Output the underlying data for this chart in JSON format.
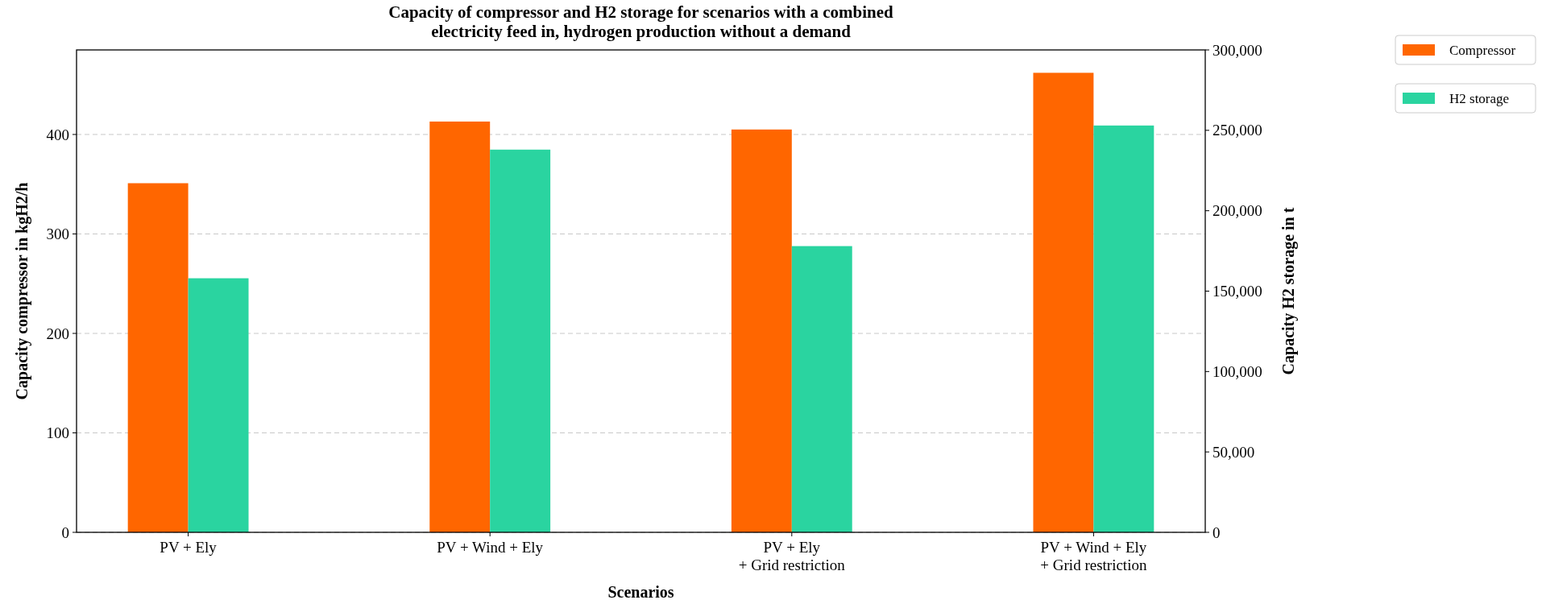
{
  "chart_data": {
    "type": "bar",
    "title": "Capacity of compressor and H2 storage for scenarios with a combined\nelectricity feed in, hydrogen production without a demand",
    "xlabel": "Scenarios",
    "ylabel": "Capacity compressor in kgH2/h",
    "y2label": "Capacity H2 storage in t",
    "categories": [
      "PV + Ely",
      "PV + Wind + Ely",
      "PV + Ely\n+ Grid restriction",
      "PV + Wind + Ely\n+ Grid restriction"
    ],
    "series": [
      {
        "name": "Compressor",
        "color": "#ff6600",
        "values": [
          351,
          413,
          405,
          462
        ]
      },
      {
        "name": "H2 storage",
        "color": "#2ad4a0",
        "axis": "y2",
        "values": [
          158000,
          238000,
          178000,
          253000
        ]
      }
    ],
    "ylim": [
      0,
      485
    ],
    "yticks": [
      0,
      100,
      200,
      300,
      400
    ],
    "y2lim": [
      0,
      300000
    ],
    "y2ticks": [
      {
        "value": 0,
        "label": "0"
      },
      {
        "value": 50000,
        "label": "50,000"
      },
      {
        "value": 100000,
        "label": "100,000"
      },
      {
        "value": 150000,
        "label": "150,000"
      },
      {
        "value": 200000,
        "label": "200,000"
      },
      {
        "value": 250000,
        "label": "250,000"
      },
      {
        "value": 300000,
        "label": "300,000"
      }
    ],
    "grid": "y",
    "legend": "top right"
  }
}
